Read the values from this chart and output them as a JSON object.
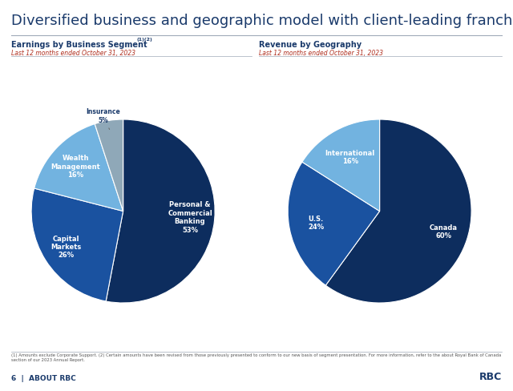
{
  "title": "Diversified business and geographic model with client-leading franchises",
  "title_color": "#1a3a6b",
  "title_fontsize": 13,
  "bg_color": "#ffffff",
  "left_title": "Earnings by Business Segment¹⁻²",
  "left_title_superscript": "(1)(2)",
  "left_title_base": "Earnings by Business Segment",
  "left_subtitle": "Last 12 months ended October 31, 2023",
  "right_title": "Revenue by Geography",
  "right_subtitle": "Last 12 months ended October 31, 2023",
  "pie1_labels": [
    "Personal &\nCommercial\nBanking",
    "Capital\nMarkets",
    "Wealth\nManagement",
    "Insurance"
  ],
  "pie1_values": [
    53,
    26,
    16,
    5
  ],
  "pie1_colors": [
    "#0d2d5e",
    "#1a52a0",
    "#72b3e0",
    "#8fa8b8"
  ],
  "pie1_startangle": 90,
  "pie1_pct_labels": [
    "53%",
    "26%",
    "16%",
    "5%"
  ],
  "pie1_text_colors": [
    "#ffffff",
    "#ffffff",
    "#ffffff",
    "#1a3a6b"
  ],
  "pie1_label_r": [
    0.6,
    0.6,
    0.58,
    0.0
  ],
  "pie2_labels": [
    "Canada",
    "U.S.",
    "International"
  ],
  "pie2_values": [
    60,
    24,
    16
  ],
  "pie2_colors": [
    "#0d2d5e",
    "#1a52a0",
    "#72b3e0"
  ],
  "pie2_startangle": 90,
  "pie2_pct_labels": [
    "60%",
    "24%",
    "16%"
  ],
  "pie2_text_colors": [
    "#ffffff",
    "#ffffff",
    "#ffffff"
  ],
  "pie2_label_r": [
    0.6,
    0.58,
    0.55
  ],
  "footer_text": "(1) Amounts exclude Corporate Support. (2) Certain amounts have been revised from those previously presented to conform to our new basis of segment presentation. For more information, refer to the about Royal Bank of Canada section of our 2023 Annual Report.",
  "page_label": "6  |  ABOUT RBC",
  "rbc_label": "RBC"
}
